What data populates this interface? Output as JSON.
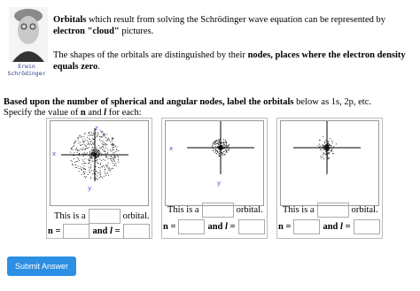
{
  "intro": [
    "Orbitals",
    " which result from solving the Schrödinger wave equation can be represented by ",
    "electron \"cloud\"",
    " pictures."
  ],
  "nodes_text": [
    "The shapes of the orbitals are distinguished by their ",
    "nodes, places where the electron density equals zero",
    "."
  ],
  "caption": [
    "Erwin",
    "Schrödinger"
  ],
  "instructions": [
    "Based upon the number of spherical and angular nodes, label the orbitals",
    " below as 1s, 2p, etc."
  ],
  "specify": [
    "Specify the value of ",
    "n",
    " and ",
    "l",
    " for each:"
  ],
  "panels": [
    {
      "axes": [
        "x",
        "y",
        "z"
      ],
      "prefix": "This is a",
      "suffix": "orbital.",
      "n_label": "n =",
      "l_label": [
        "and ",
        "l",
        " ="
      ]
    },
    {
      "axes": [
        "x",
        "y"
      ],
      "prefix": "This is a",
      "suffix": "orbital.",
      "n_label": "n =",
      "l_label": [
        "and ",
        "l",
        " ="
      ]
    },
    {
      "axes": [],
      "prefix": "This is a",
      "suffix": "orbital.",
      "n_label": "n =",
      "l_label": [
        "and ",
        "l",
        " ="
      ]
    }
  ],
  "submit": "Submit Answer"
}
